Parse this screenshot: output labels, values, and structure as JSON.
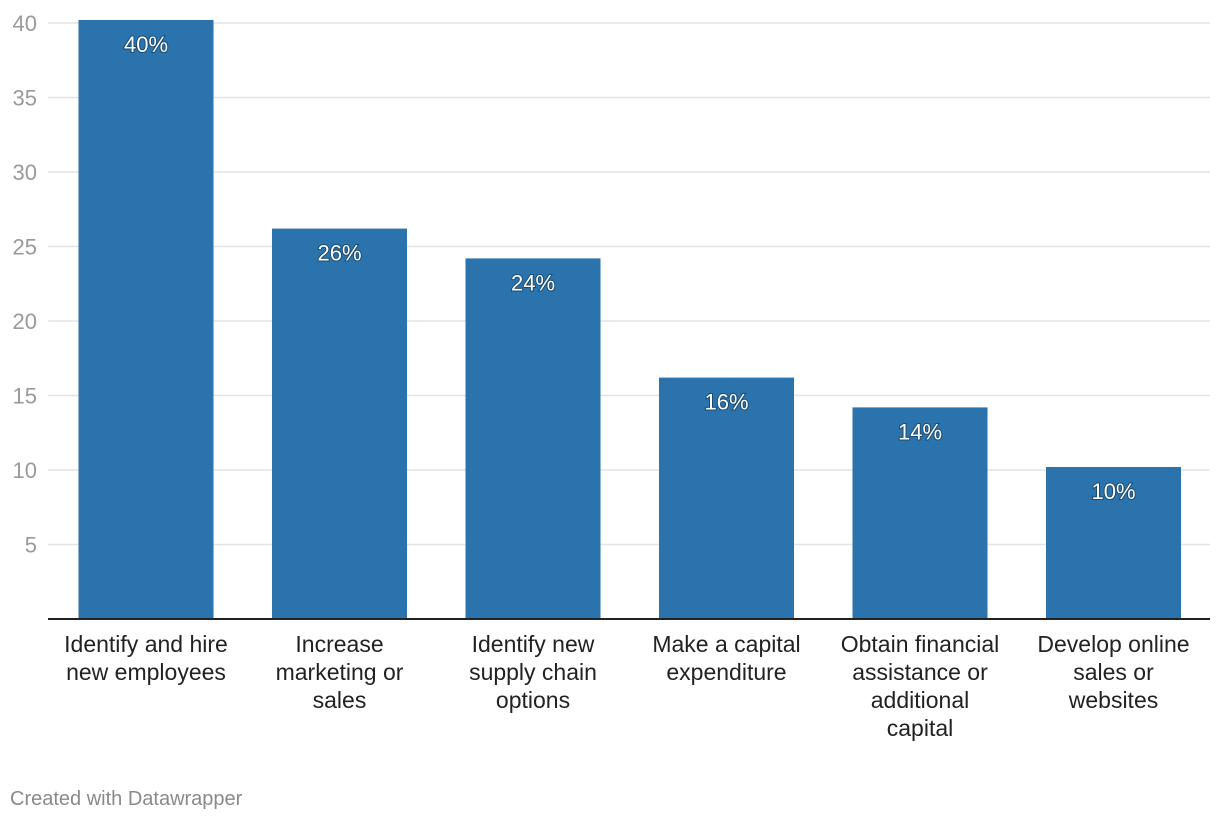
{
  "chart_data": {
    "type": "bar",
    "title": "",
    "xlabel": "",
    "ylabel": "",
    "ylim": [
      0,
      40
    ],
    "yticks": [
      5,
      10,
      15,
      20,
      25,
      30,
      35,
      40
    ],
    "grid": true,
    "categories": [
      [
        "Identify and hire",
        "new employees"
      ],
      [
        "Increase",
        "marketing or",
        "sales"
      ],
      [
        "Identify new",
        "supply chain",
        "options"
      ],
      [
        "Make a capital",
        "expenditure"
      ],
      [
        "Obtain financial",
        "assistance or",
        "additional",
        "capital"
      ],
      [
        "Develop online",
        "sales or",
        "websites"
      ]
    ],
    "values": [
      40,
      26,
      24,
      16,
      14,
      10
    ],
    "data_labels": [
      "40%",
      "26%",
      "24%",
      "16%",
      "14%",
      "10%"
    ],
    "bar_color": "#2a73ad",
    "grid_color": "#e3e3e3",
    "tick_label_color": "#9a9a9a",
    "axis_color": "#222222",
    "category_label_color": "#222222",
    "data_label_color": "#ffffff"
  },
  "footer": {
    "credit": "Created with Datawrapper"
  }
}
